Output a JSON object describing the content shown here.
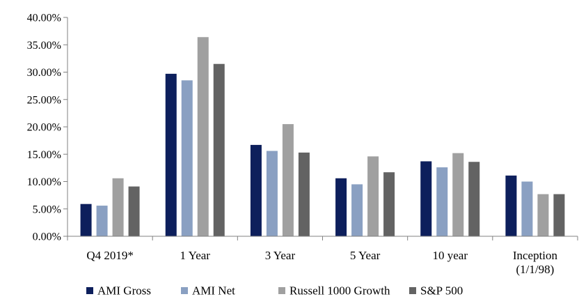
{
  "chart_data": {
    "type": "bar",
    "title": "",
    "xlabel": "",
    "ylabel": "",
    "ylim": [
      0,
      40
    ],
    "y_ticks": [
      "0.00%",
      "5.00%",
      "10.00%",
      "15.00%",
      "20.00%",
      "25.00%",
      "30.00%",
      "35.00%",
      "40.00%"
    ],
    "categories": [
      [
        "Q4 2019*"
      ],
      [
        "1 Year"
      ],
      [
        "3 Year"
      ],
      [
        "5 Year"
      ],
      [
        "10 year"
      ],
      [
        "Inception",
        "(1/1/98)"
      ]
    ],
    "series": [
      {
        "name": "AMI Gross",
        "color": "#0d1f5c",
        "values": [
          5.9,
          29.7,
          16.7,
          10.6,
          13.7,
          11.1
        ]
      },
      {
        "name": "AMI Net",
        "color": "#8aa0c2",
        "values": [
          5.6,
          28.5,
          15.6,
          9.5,
          12.6,
          10.0
        ]
      },
      {
        "name": "Russell 1000 Growth",
        "color": "#a0a0a0",
        "values": [
          10.6,
          36.4,
          20.5,
          14.6,
          15.2,
          7.7
        ]
      },
      {
        "name": "S&P 500",
        "color": "#636363",
        "values": [
          9.1,
          31.5,
          15.3,
          11.7,
          13.6,
          7.7
        ]
      }
    ],
    "grid": false,
    "legend_position": "bottom"
  }
}
